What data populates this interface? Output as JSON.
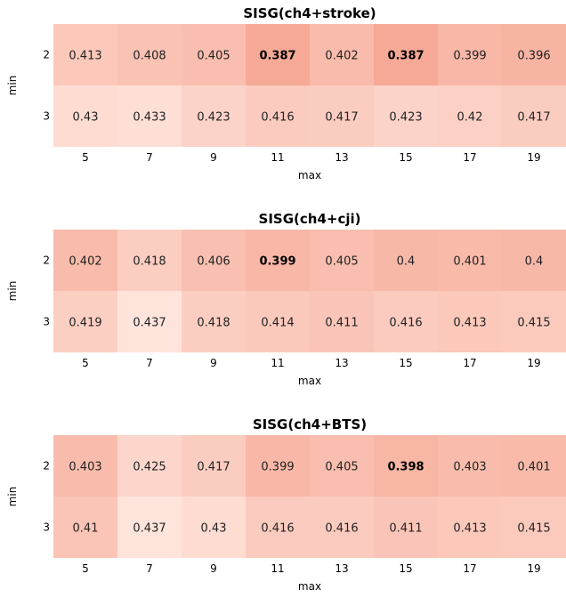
{
  "chart_data": [
    {
      "type": "heatmap",
      "title": "SISG(ch4+stroke)",
      "xlabel": "max",
      "ylabel": "min",
      "x": [
        "5",
        "7",
        "9",
        "11",
        "13",
        "15",
        "17",
        "19"
      ],
      "y": [
        "2",
        "3"
      ],
      "values": [
        [
          "0.413",
          "0.408",
          "0.405",
          "0.387",
          "0.402",
          "0.387",
          "0.399",
          "0.396"
        ],
        [
          "0.43",
          "0.433",
          "0.423",
          "0.416",
          "0.417",
          "0.423",
          "0.42",
          "0.417"
        ]
      ],
      "bold_cells": [
        [
          0,
          3
        ],
        [
          0,
          5
        ]
      ]
    },
    {
      "type": "heatmap",
      "title": "SISG(ch4+cji)",
      "xlabel": "max",
      "ylabel": "min",
      "x": [
        "5",
        "7",
        "9",
        "11",
        "13",
        "15",
        "17",
        "19"
      ],
      "y": [
        "2",
        "3"
      ],
      "values": [
        [
          "0.402",
          "0.418",
          "0.406",
          "0.399",
          "0.405",
          "0.4",
          "0.401",
          "0.4"
        ],
        [
          "0.419",
          "0.437",
          "0.418",
          "0.414",
          "0.411",
          "0.416",
          "0.413",
          "0.415"
        ]
      ],
      "bold_cells": [
        [
          0,
          3
        ]
      ]
    },
    {
      "type": "heatmap",
      "title": "SISG(ch4+BTS)",
      "xlabel": "max",
      "ylabel": "min",
      "x": [
        "5",
        "7",
        "9",
        "11",
        "13",
        "15",
        "17",
        "19"
      ],
      "y": [
        "2",
        "3"
      ],
      "values": [
        [
          "0.403",
          "0.425",
          "0.417",
          "0.399",
          "0.405",
          "0.398",
          "0.403",
          "0.401"
        ],
        [
          "0.41",
          "0.437",
          "0.43",
          "0.416",
          "0.416",
          "0.411",
          "0.413",
          "0.415"
        ]
      ],
      "bold_cells": [
        [
          0,
          5
        ]
      ]
    }
  ],
  "colors": {
    "low_value": "#f6a996",
    "high_value": "#ffe4dc"
  }
}
